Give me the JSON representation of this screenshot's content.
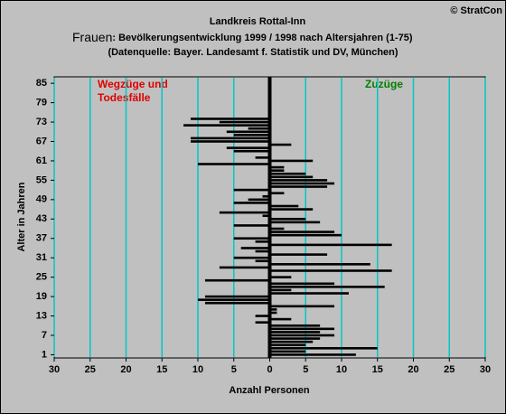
{
  "chart_data": {
    "type": "hbar",
    "copyright": "© StratCon",
    "title": "Landkreis Rottal-Inn",
    "subtitle_lead": "Frauen",
    "subtitle": ": Bevölkerungsentwicklung 1999 / 1998  nach Altersjahren (1-75)",
    "source": "(Datenquelle: Bayer. Landesamt f. Statistik und DV, München)",
    "annotation_left": [
      "Wegzüge und",
      "Todesfälle"
    ],
    "annotation_right": "Zuzüge",
    "y_label": "Alter in Jahren",
    "x_label": "Anzahl Personen",
    "categories": [
      1,
      2,
      3,
      4,
      5,
      6,
      7,
      8,
      9,
      10,
      11,
      12,
      13,
      14,
      15,
      16,
      17,
      18,
      19,
      20,
      21,
      22,
      23,
      24,
      25,
      26,
      27,
      28,
      29,
      30,
      31,
      32,
      33,
      34,
      35,
      36,
      37,
      38,
      39,
      40,
      41,
      42,
      43,
      44,
      45,
      46,
      47,
      48,
      49,
      50,
      51,
      52,
      53,
      54,
      55,
      56,
      57,
      58,
      59,
      60,
      61,
      62,
      63,
      64,
      65,
      66,
      67,
      68,
      69,
      70,
      71,
      72,
      73,
      74,
      75
    ],
    "values": [
      12,
      5,
      15,
      5,
      6,
      7,
      9,
      7,
      9,
      7,
      -2,
      3,
      -2,
      1,
      1,
      9,
      -9,
      -10,
      -9,
      11,
      3,
      16,
      9,
      -9,
      3,
      0,
      17,
      -7,
      14,
      -2,
      -5,
      8,
      -2,
      -4,
      17,
      -2,
      -5,
      10,
      9,
      2,
      -5,
      7,
      5,
      -1,
      -7,
      6,
      4,
      -5,
      -3,
      -1,
      2,
      -5,
      8,
      9,
      8,
      6,
      5,
      2,
      2,
      -10,
      6,
      -2,
      0,
      -5,
      -6,
      3,
      -11,
      -11,
      -5,
      -6,
      -3,
      -12,
      -7,
      -11,
      0
    ],
    "color": "#000000",
    "xlim": [
      -30,
      30
    ],
    "xticks": [
      {
        "value": -30,
        "label": "30"
      },
      {
        "value": -25,
        "label": "25"
      },
      {
        "value": -20,
        "label": "20"
      },
      {
        "value": -15,
        "label": "15"
      },
      {
        "value": -10,
        "label": "10"
      },
      {
        "value": -5,
        "label": "5"
      },
      0,
      5,
      10,
      15,
      20,
      25,
      30
    ],
    "ylim": [
      0,
      87
    ],
    "yticks": [
      1,
      7,
      13,
      19,
      25,
      31,
      37,
      43,
      49,
      55,
      61,
      67,
      73,
      79,
      85
    ],
    "grid": true,
    "grid_color": "#00c8c8"
  }
}
